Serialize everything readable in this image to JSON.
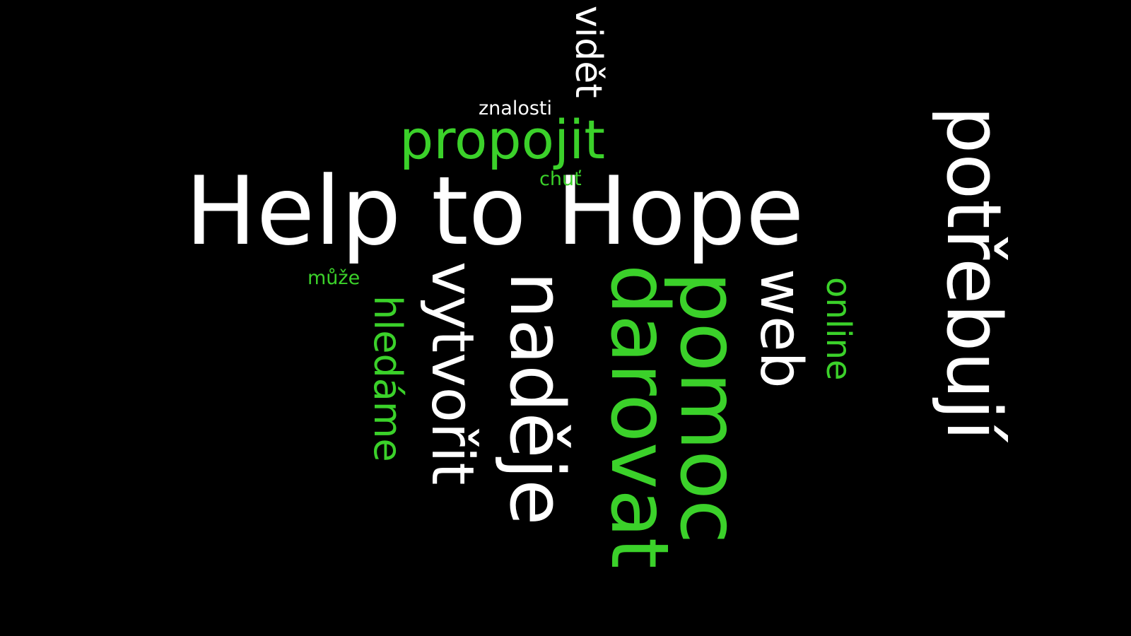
{
  "words": {
    "help": "Help to Hope",
    "propojit": "propojit",
    "znalosti": "znalosti",
    "chut": "chuť",
    "muze": "může",
    "videt": "vidět",
    "potrebuji": "potřebují",
    "vytvorit": "vytvořit",
    "nadeje": "naděje",
    "darovat": "darovat",
    "pomoc": "pomoc",
    "web": "web",
    "online": "online",
    "hledame": "hledáme"
  },
  "colors": {
    "background": "#000000",
    "white": "#ffffff",
    "green": "#3bd12a"
  }
}
